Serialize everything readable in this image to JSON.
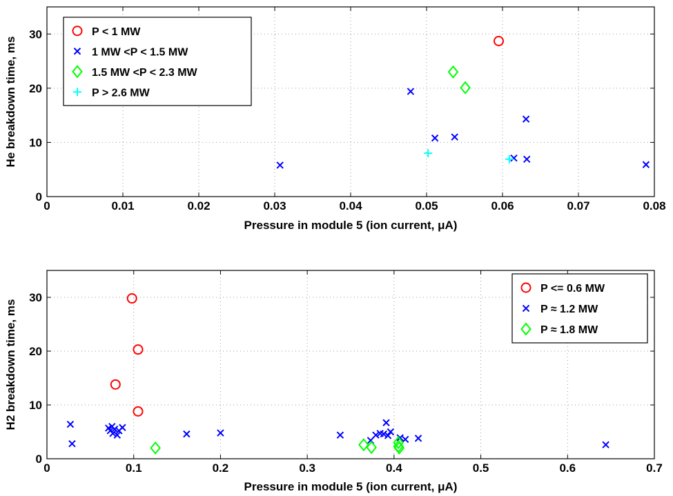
{
  "chart_data": [
    {
      "type": "scatter",
      "xlabel": "Pressure in module 5 (ion current, μA)",
      "ylabel": "He breakdown time, ms",
      "xlim": [
        0,
        0.08
      ],
      "ylim": [
        0,
        35
      ],
      "xticks": [
        "0",
        "0.01",
        "0.02",
        "0.03",
        "0.04",
        "0.05",
        "0.06",
        "0.07",
        "0.08"
      ],
      "yticks": [
        "0",
        "10",
        "20",
        "30"
      ],
      "grid": true,
      "legend_position": "top-left",
      "series": [
        {
          "name": "P < 1 MW",
          "marker": "circle",
          "color": "#ff0000",
          "points": [
            [
              0.0595,
              28.7
            ]
          ]
        },
        {
          "name": "1 MW <P < 1.5 MW",
          "marker": "x",
          "color": "#0000ff",
          "points": [
            [
              0.0307,
              5.8
            ],
            [
              0.0479,
              19.4
            ],
            [
              0.0511,
              10.8
            ],
            [
              0.0537,
              11.0
            ],
            [
              0.0615,
              7.1
            ],
            [
              0.0631,
              14.3
            ],
            [
              0.0632,
              6.9
            ],
            [
              0.0789,
              5.9
            ]
          ]
        },
        {
          "name": "1.5 MW <P < 2.3 MW",
          "marker": "diamond",
          "color": "#00ff00",
          "points": [
            [
              0.0535,
              23.0
            ],
            [
              0.0551,
              20.1
            ]
          ]
        },
        {
          "name": "P > 2.6 MW",
          "marker": "plus",
          "color": "#00ffff",
          "points": [
            [
              0.0502,
              8.0
            ],
            [
              0.0609,
              6.9
            ]
          ]
        }
      ]
    },
    {
      "type": "scatter",
      "xlabel": "Pressure in module 5 (ion current, μA)",
      "ylabel": "H2 breakdown time, ms",
      "xlim": [
        0,
        0.7
      ],
      "ylim": [
        0,
        35
      ],
      "xticks": [
        "0",
        "0.1",
        "0.2",
        "0.3",
        "0.4",
        "0.5",
        "0.6",
        "0.7"
      ],
      "yticks": [
        "0",
        "10",
        "20",
        "30"
      ],
      "grid": true,
      "legend_position": "top-right",
      "series": [
        {
          "name": "P <= 0.6 MW",
          "marker": "circle",
          "color": "#ff0000",
          "points": [
            [
              0.098,
              29.8
            ],
            [
              0.105,
              20.3
            ],
            [
              0.079,
              13.8
            ],
            [
              0.105,
              8.8
            ]
          ]
        },
        {
          "name": "P ≈ 1.2 MW",
          "marker": "x",
          "color": "#0000ff",
          "points": [
            [
              0.027,
              6.4
            ],
            [
              0.029,
              2.8
            ],
            [
              0.071,
              5.7
            ],
            [
              0.073,
              5.2
            ],
            [
              0.075,
              6.0
            ],
            [
              0.076,
              4.7
            ],
            [
              0.078,
              5.5
            ],
            [
              0.081,
              4.4
            ],
            [
              0.083,
              5.2
            ],
            [
              0.087,
              5.8
            ],
            [
              0.161,
              4.6
            ],
            [
              0.2,
              4.8
            ],
            [
              0.338,
              4.4
            ],
            [
              0.373,
              3.4
            ],
            [
              0.379,
              4.4
            ],
            [
              0.384,
              4.7
            ],
            [
              0.388,
              4.6
            ],
            [
              0.391,
              6.7
            ],
            [
              0.393,
              4.3
            ],
            [
              0.396,
              5.0
            ],
            [
              0.407,
              3.9
            ],
            [
              0.413,
              3.6
            ],
            [
              0.428,
              3.8
            ],
            [
              0.644,
              2.6
            ]
          ]
        },
        {
          "name": "P ≈ 1.8 MW",
          "marker": "diamond",
          "color": "#00ff00",
          "points": [
            [
              0.125,
              2.0
            ],
            [
              0.365,
              2.6
            ],
            [
              0.374,
              2.1
            ],
            [
              0.405,
              3.0
            ],
            [
              0.405,
              2.3
            ],
            [
              0.406,
              2.0
            ]
          ]
        }
      ]
    }
  ]
}
